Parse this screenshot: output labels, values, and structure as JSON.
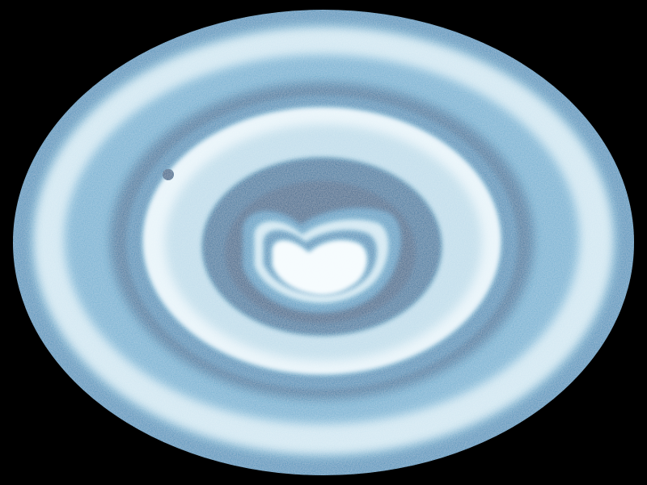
{
  "image": {
    "subject": "",
    "background_color": "#000000",
    "palette": {
      "outer_edge": "#3f8fba",
      "light_band": "#cfe6f1",
      "mid_band": "#5fa7cc",
      "dark_band": "#1f6f9c",
      "deep_band": "#0f5a86",
      "pale_ring": "#e6f3f9",
      "core_white": "#f4fbfe"
    }
  }
}
